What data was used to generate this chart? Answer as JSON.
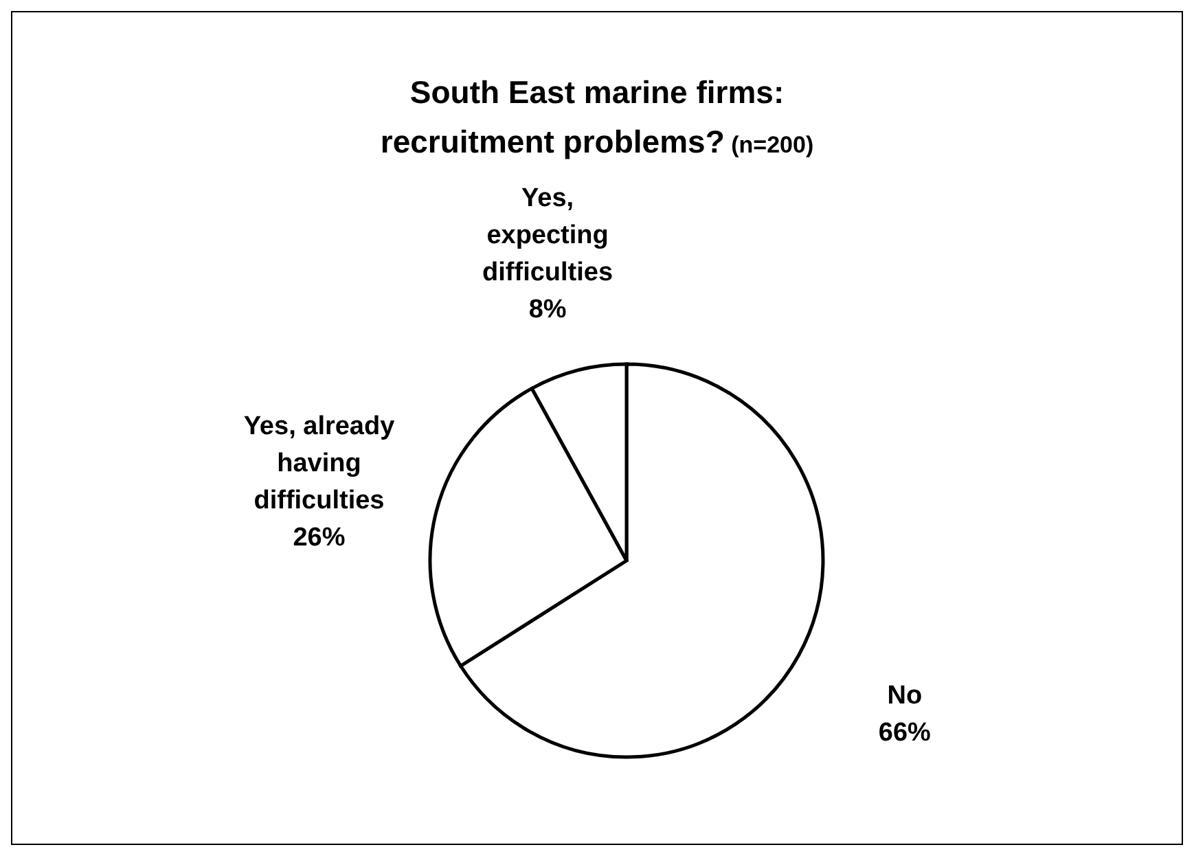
{
  "chart_data": {
    "type": "pie",
    "title": "South East marine firms: recruitment problems?",
    "subtitle": "(n=200)",
    "categories": [
      "No",
      "Yes, already having difficulties",
      "Yes, expecting difficulties"
    ],
    "values": [
      66,
      26,
      8
    ],
    "value_labels": [
      "66%",
      "26%",
      "8%"
    ],
    "colors": [
      "#ffffff",
      "#ffffff",
      "#ffffff"
    ]
  }
}
